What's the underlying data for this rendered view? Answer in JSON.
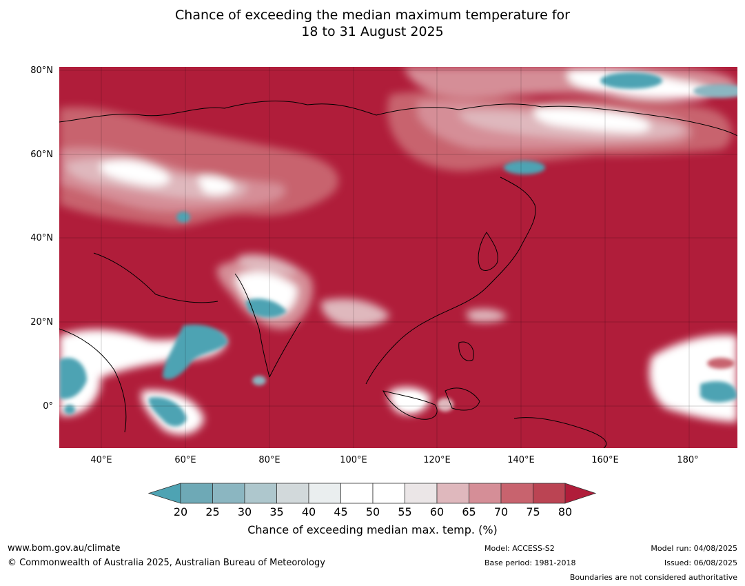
{
  "title_line1": "Chance of exceeding the median maximum temperature for",
  "title_line2": "18 to 31 August 2025",
  "lat_labels": [
    "80°N",
    "60°N",
    "40°N",
    "20°N",
    "0°"
  ],
  "lon_labels": [
    "40°E",
    "60°E",
    "80°E",
    "100°E",
    "120°E",
    "140°E",
    "160°E",
    "180°"
  ],
  "colorbar": {
    "ticks": [
      "20",
      "25",
      "30",
      "35",
      "40",
      "45",
      "50",
      "55",
      "60",
      "65",
      "70",
      "75",
      "80"
    ],
    "colors": [
      "#4ea3b3",
      "#6ea9b6",
      "#8bb6c1",
      "#aec7cd",
      "#d2d9db",
      "#eaeeef",
      "#ffffff",
      "#ffffff",
      "#ebe6e7",
      "#dfb8bd",
      "#d58e97",
      "#c8636e",
      "#bb4453",
      "#b01d3a"
    ],
    "label": "Chance of exceeding median max. temp. (%)"
  },
  "footer": {
    "website": "www.bom.gov.au/climate",
    "copyright": "© Commonwealth of Australia 2025, Australian Bureau of Meteorology",
    "model": "Model: ACCESS-S2",
    "base_period": "Base period: 1981-2018",
    "model_run": "Model run: 04/08/2025",
    "issued": "Issued: 06/08/2025",
    "disclaimer": "Boundaries are not considered authoritative"
  },
  "map_colors": {
    "hot": "#b01d3a",
    "warm1": "#c8636e",
    "warm2": "#d58e97",
    "warm3": "#dfb8bd",
    "neutral": "#ffffff",
    "cool1": "#aec7cd",
    "cool2": "#4ea3b3"
  }
}
